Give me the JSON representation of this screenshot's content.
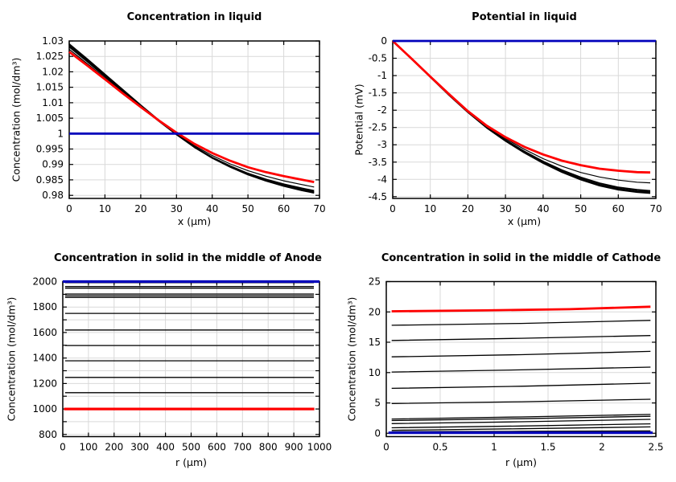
{
  "page": {
    "background": "#ffffff"
  },
  "colors": {
    "black": "#000000",
    "red": "#ff0000",
    "blue": "#0000bb",
    "grid": "#d9d9d9",
    "axis": "#000000"
  },
  "chart_data": [
    {
      "id": "concentration-in-liquid",
      "type": "line",
      "title": "Concentration in liquid",
      "xlabel": "x (µm)",
      "ylabel": "Concentration (mol/dm³)",
      "xlim": [
        0,
        70
      ],
      "ylim": [
        0.979,
        1.03
      ],
      "grid": true,
      "legend": "none",
      "xticks": [
        {
          "v": 0,
          "label": "0"
        },
        {
          "v": 10,
          "label": "10"
        },
        {
          "v": 20,
          "label": "20"
        },
        {
          "v": 30,
          "label": "30"
        },
        {
          "v": 40,
          "label": "40"
        },
        {
          "v": 50,
          "label": "50"
        },
        {
          "v": 60,
          "label": "60"
        },
        {
          "v": 70,
          "label": "70"
        }
      ],
      "yticks": [
        {
          "v": 0.98,
          "label": "0.98"
        },
        {
          "v": 0.985,
          "label": "0.985"
        },
        {
          "v": 0.99,
          "label": "0.99"
        },
        {
          "v": 0.995,
          "label": "0.995"
        },
        {
          "v": 1,
          "label": "1"
        },
        {
          "v": 1.005,
          "label": "1.005"
        },
        {
          "v": 1.01,
          "label": "1.01"
        },
        {
          "v": 1.015,
          "label": "1.015"
        },
        {
          "v": 1.02,
          "label": "1.02"
        },
        {
          "v": 1.025,
          "label": "1.025"
        },
        {
          "v": 1.03,
          "label": "1.03"
        }
      ],
      "series": [
        {
          "color": "black",
          "width": 1.8,
          "x": [
            0,
            5,
            10,
            15,
            20,
            25,
            30,
            35,
            40,
            45,
            50,
            55,
            60,
            65,
            68.5
          ],
          "y": [
            1.029,
            1.0242,
            1.0192,
            1.0142,
            1.0092,
            1.0044,
            0.9998,
            0.9956,
            0.9921,
            0.9892,
            0.9867,
            0.9847,
            0.983,
            0.9816,
            0.9808
          ]
        },
        {
          "color": "black",
          "width": 1.8,
          "x": [
            0,
            5,
            10,
            15,
            20,
            25,
            30,
            35,
            40,
            45,
            50,
            55,
            60,
            65,
            68.5
          ],
          "y": [
            1.0286,
            1.0238,
            1.0189,
            1.0139,
            1.009,
            1.0042,
            0.9997,
            0.9956,
            0.9922,
            0.9893,
            0.9869,
            0.9849,
            0.9832,
            0.9819,
            0.9811
          ]
        },
        {
          "color": "black",
          "width": 1.8,
          "x": [
            0,
            5,
            10,
            15,
            20,
            25,
            30,
            35,
            40,
            45,
            50,
            55,
            60,
            65,
            68.5
          ],
          "y": [
            1.0281,
            1.0234,
            1.0185,
            1.0136,
            1.0088,
            1.0041,
            0.9997,
            0.9957,
            0.9923,
            0.9895,
            0.9871,
            0.9852,
            0.9836,
            0.9823,
            0.9815
          ]
        },
        {
          "color": "black",
          "width": 1.2,
          "x": [
            0,
            5,
            10,
            15,
            20,
            25,
            30,
            35,
            40,
            45,
            50,
            55,
            60,
            65,
            68.5
          ],
          "y": [
            1.0273,
            1.0227,
            1.018,
            1.0132,
            1.0086,
            1.0041,
            0.9999,
            0.9961,
            0.9929,
            0.9902,
            0.988,
            0.9862,
            0.9847,
            0.9835,
            0.9827
          ]
        },
        {
          "color": "red",
          "width": 2.8,
          "x": [
            0,
            5,
            10,
            15,
            20,
            25,
            30,
            35,
            40,
            45,
            50,
            55,
            60,
            65,
            68.5
          ],
          "y": [
            1.0265,
            1.0221,
            1.0176,
            1.013,
            1.0086,
            1.0043,
            1.0003,
            0.9967,
            0.9937,
            0.9912,
            0.9891,
            0.9875,
            0.9862,
            0.9851,
            0.9843
          ]
        },
        {
          "color": "blue",
          "width": 2.8,
          "x": [
            0,
            70
          ],
          "y": [
            1,
            1
          ]
        }
      ]
    },
    {
      "id": "potential-in-liquid",
      "type": "line",
      "title": "Potential in liquid",
      "xlabel": "x (µm)",
      "ylabel": "Potential (mV)",
      "xlim": [
        0,
        70
      ],
      "ylim": [
        -4.55,
        0
      ],
      "grid": true,
      "legend": "none",
      "xticks": [
        {
          "v": 0,
          "label": "0"
        },
        {
          "v": 10,
          "label": "10"
        },
        {
          "v": 20,
          "label": "20"
        },
        {
          "v": 30,
          "label": "30"
        },
        {
          "v": 40,
          "label": "40"
        },
        {
          "v": 50,
          "label": "50"
        },
        {
          "v": 60,
          "label": "60"
        },
        {
          "v": 70,
          "label": "70"
        }
      ],
      "yticks": [
        {
          "v": -4.5,
          "label": "-4.5"
        },
        {
          "v": -4,
          "label": "-4"
        },
        {
          "v": -3.5,
          "label": "-3.5"
        },
        {
          "v": -3,
          "label": "-3"
        },
        {
          "v": -2.5,
          "label": "-2.5"
        },
        {
          "v": -2,
          "label": "-2"
        },
        {
          "v": -1.5,
          "label": "-1.5"
        },
        {
          "v": -1,
          "label": "-1"
        },
        {
          "v": -0.5,
          "label": "-0.5"
        },
        {
          "v": 0,
          "label": "0"
        }
      ],
      "series": [
        {
          "color": "black",
          "width": 1.8,
          "x": [
            0,
            5,
            10,
            15,
            20,
            25,
            30,
            35,
            40,
            45,
            50,
            55,
            60,
            65,
            68.5
          ],
          "y": [
            0,
            -0.52,
            -1.04,
            -1.57,
            -2.06,
            -2.51,
            -2.89,
            -3.23,
            -3.53,
            -3.79,
            -4.01,
            -4.18,
            -4.3,
            -4.37,
            -4.4
          ]
        },
        {
          "color": "black",
          "width": 1.8,
          "x": [
            0,
            5,
            10,
            15,
            20,
            25,
            30,
            35,
            40,
            45,
            50,
            55,
            60,
            65,
            68.5
          ],
          "y": [
            0,
            -0.51,
            -1.04,
            -1.56,
            -2.06,
            -2.5,
            -2.87,
            -3.21,
            -3.51,
            -3.76,
            -3.98,
            -4.15,
            -4.27,
            -4.34,
            -4.37
          ]
        },
        {
          "color": "black",
          "width": 1.8,
          "x": [
            0,
            5,
            10,
            15,
            20,
            25,
            30,
            35,
            40,
            45,
            50,
            55,
            60,
            65,
            68.5
          ],
          "y": [
            0,
            -0.51,
            -1.04,
            -1.56,
            -2.05,
            -2.49,
            -2.86,
            -3.19,
            -3.48,
            -3.73,
            -3.94,
            -4.11,
            -4.23,
            -4.3,
            -4.33
          ]
        },
        {
          "color": "black",
          "width": 1.2,
          "x": [
            0,
            5,
            10,
            15,
            20,
            25,
            30,
            35,
            40,
            45,
            50,
            55,
            60,
            65,
            68.5
          ],
          "y": [
            0,
            -0.51,
            -1.03,
            -1.55,
            -2.04,
            -2.47,
            -2.82,
            -3.13,
            -3.4,
            -3.62,
            -3.8,
            -3.93,
            -4.02,
            -4.08,
            -4.1
          ]
        },
        {
          "color": "red",
          "width": 2.8,
          "x": [
            0,
            5,
            10,
            15,
            20,
            25,
            30,
            35,
            40,
            45,
            50,
            55,
            60,
            65,
            68.5
          ],
          "y": [
            0,
            -0.51,
            -1.03,
            -1.54,
            -2.03,
            -2.45,
            -2.78,
            -3.06,
            -3.28,
            -3.46,
            -3.59,
            -3.69,
            -3.75,
            -3.79,
            -3.8
          ]
        },
        {
          "color": "blue",
          "width": 2.8,
          "x": [
            0,
            70
          ],
          "y": [
            0,
            0
          ]
        }
      ]
    },
    {
      "id": "concentration-solid-anode",
      "type": "line",
      "title": "Concentration in solid in the middle of Anode",
      "xlabel": "r (µm)",
      "ylabel": "Concentration (mol/dm³)",
      "xlim": [
        0,
        1000
      ],
      "ylim": [
        783,
        2000
      ],
      "grid": true,
      "legend": "none",
      "xticks": [
        {
          "v": 0,
          "label": "0"
        },
        {
          "v": 100,
          "label": "100"
        },
        {
          "v": 200,
          "label": "200"
        },
        {
          "v": 300,
          "label": "300"
        },
        {
          "v": 400,
          "label": "400"
        },
        {
          "v": 500,
          "label": "500"
        },
        {
          "v": 600,
          "label": "600"
        },
        {
          "v": 700,
          "label": "700"
        },
        {
          "v": 800,
          "label": "800"
        },
        {
          "v": 900,
          "label": "900"
        },
        {
          "v": 1000,
          "label": "1000"
        }
      ],
      "yticks": [
        {
          "v": 800,
          "label": "800"
        },
        {
          "v": 900,
          "label": ""
        },
        {
          "v": 1000,
          "label": "1000"
        },
        {
          "v": 1100,
          "label": ""
        },
        {
          "v": 1200,
          "label": "1200"
        },
        {
          "v": 1300,
          "label": ""
        },
        {
          "v": 1400,
          "label": "1400"
        },
        {
          "v": 1500,
          "label": ""
        },
        {
          "v": 1600,
          "label": "1600"
        },
        {
          "v": 1700,
          "label": ""
        },
        {
          "v": 1800,
          "label": "1800"
        },
        {
          "v": 1900,
          "label": ""
        },
        {
          "v": 2000,
          "label": "2000"
        }
      ],
      "series": [
        {
          "color": "black",
          "width": 1.3,
          "x": [
            9,
            978
          ],
          "y": [
            1992,
            1992
          ]
        },
        {
          "color": "black",
          "width": 1.3,
          "x": [
            9,
            978
          ],
          "y": [
            1961,
            1961
          ]
        },
        {
          "color": "black",
          "width": 1.3,
          "x": [
            9,
            978
          ],
          "y": [
            1948,
            1948
          ]
        },
        {
          "color": "black",
          "width": 1.3,
          "x": [
            9,
            978
          ],
          "y": [
            1902,
            1902
          ]
        },
        {
          "color": "black",
          "width": 1.3,
          "x": [
            9,
            978
          ],
          "y": [
            1889,
            1889
          ]
        },
        {
          "color": "black",
          "width": 1.3,
          "x": [
            9,
            978
          ],
          "y": [
            1876,
            1876
          ]
        },
        {
          "color": "black",
          "width": 1.3,
          "x": [
            9,
            978
          ],
          "y": [
            1750,
            1750
          ]
        },
        {
          "color": "black",
          "width": 1.3,
          "x": [
            9,
            978
          ],
          "y": [
            1620,
            1620
          ]
        },
        {
          "color": "black",
          "width": 1.3,
          "x": [
            9,
            978
          ],
          "y": [
            1498,
            1498
          ]
        },
        {
          "color": "black",
          "width": 1.3,
          "x": [
            9,
            978
          ],
          "y": [
            1378,
            1378
          ]
        },
        {
          "color": "black",
          "width": 1.3,
          "x": [
            9,
            978
          ],
          "y": [
            1248,
            1248
          ]
        },
        {
          "color": "black",
          "width": 1.3,
          "x": [
            9,
            978
          ],
          "y": [
            1128,
            1128
          ]
        },
        {
          "color": "red",
          "width": 3.2,
          "x": [
            5,
            980
          ],
          "y": [
            1000,
            1000
          ]
        },
        {
          "color": "blue",
          "width": 3.2,
          "x": [
            0,
            1000
          ],
          "y": [
            2000,
            2000
          ]
        }
      ]
    },
    {
      "id": "concentration-solid-cathode",
      "type": "line",
      "title": "Concentration in solid in the middle of Cathode",
      "xlabel": "r (µm)",
      "ylabel": "Concentration (mol/dm³)",
      "xlim": [
        0,
        2.5
      ],
      "ylim": [
        -0.55,
        25
      ],
      "grid": true,
      "legend": "none",
      "xticks": [
        {
          "v": 0,
          "label": "0"
        },
        {
          "v": 0.5,
          "label": "0.5"
        },
        {
          "v": 1,
          "label": "1"
        },
        {
          "v": 1.5,
          "label": "1.5"
        },
        {
          "v": 2,
          "label": "2"
        },
        {
          "v": 2.5,
          "label": "2.5"
        }
      ],
      "yticks": [
        {
          "v": 0,
          "label": "0"
        },
        {
          "v": 5,
          "label": "5"
        },
        {
          "v": 10,
          "label": "10"
        },
        {
          "v": 15,
          "label": "15"
        },
        {
          "v": 20,
          "label": "20"
        },
        {
          "v": 25,
          "label": "25"
        }
      ],
      "series": [
        {
          "color": "black",
          "width": 1.3,
          "x": [
            0.05,
            1.25,
            2.45
          ],
          "y": [
            17.8,
            18.1,
            18.6
          ]
        },
        {
          "color": "black",
          "width": 1.3,
          "x": [
            0.05,
            1.25,
            2.45
          ],
          "y": [
            15.3,
            15.65,
            16.1
          ]
        },
        {
          "color": "black",
          "width": 1.3,
          "x": [
            0.05,
            1.25,
            2.45
          ],
          "y": [
            12.6,
            12.95,
            13.5
          ]
        },
        {
          "color": "black",
          "width": 1.3,
          "x": [
            0.05,
            1.25,
            2.45
          ],
          "y": [
            10.1,
            10.45,
            10.9
          ]
        },
        {
          "color": "black",
          "width": 1.3,
          "x": [
            0.05,
            1.25,
            2.45
          ],
          "y": [
            7.4,
            7.75,
            8.25
          ]
        },
        {
          "color": "black",
          "width": 1.3,
          "x": [
            0.05,
            1.25,
            2.45
          ],
          "y": [
            4.9,
            5.2,
            5.6
          ]
        },
        {
          "color": "black",
          "width": 1.3,
          "x": [
            0.05,
            1.25,
            2.45
          ],
          "y": [
            2.35,
            2.7,
            3.1
          ]
        },
        {
          "color": "black",
          "width": 1.3,
          "x": [
            0.05,
            1.25,
            2.45
          ],
          "y": [
            2.1,
            2.4,
            2.8
          ]
        },
        {
          "color": "black",
          "width": 1.3,
          "x": [
            0.05,
            1.25,
            2.45
          ],
          "y": [
            1.6,
            1.9,
            2.3
          ]
        },
        {
          "color": "black",
          "width": 1.3,
          "x": [
            0.05,
            1.25,
            2.45
          ],
          "y": [
            0.9,
            1.2,
            1.55
          ]
        },
        {
          "color": "black",
          "width": 1.3,
          "x": [
            0.05,
            1.25,
            2.45
          ],
          "y": [
            0.5,
            0.75,
            1.05
          ]
        },
        {
          "color": "black",
          "width": 1.6,
          "x": [
            0.05,
            1.25,
            2.45
          ],
          "y": [
            0.25,
            0.3,
            0.38
          ]
        },
        {
          "color": "red",
          "width": 2.8,
          "x": [
            0.05,
            0.9,
            1.7,
            2.45
          ],
          "y": [
            20.1,
            20.25,
            20.45,
            20.85
          ]
        },
        {
          "color": "blue",
          "width": 3.2,
          "x": [
            0.02,
            2.47
          ],
          "y": [
            0.08,
            0.08
          ]
        }
      ]
    }
  ]
}
